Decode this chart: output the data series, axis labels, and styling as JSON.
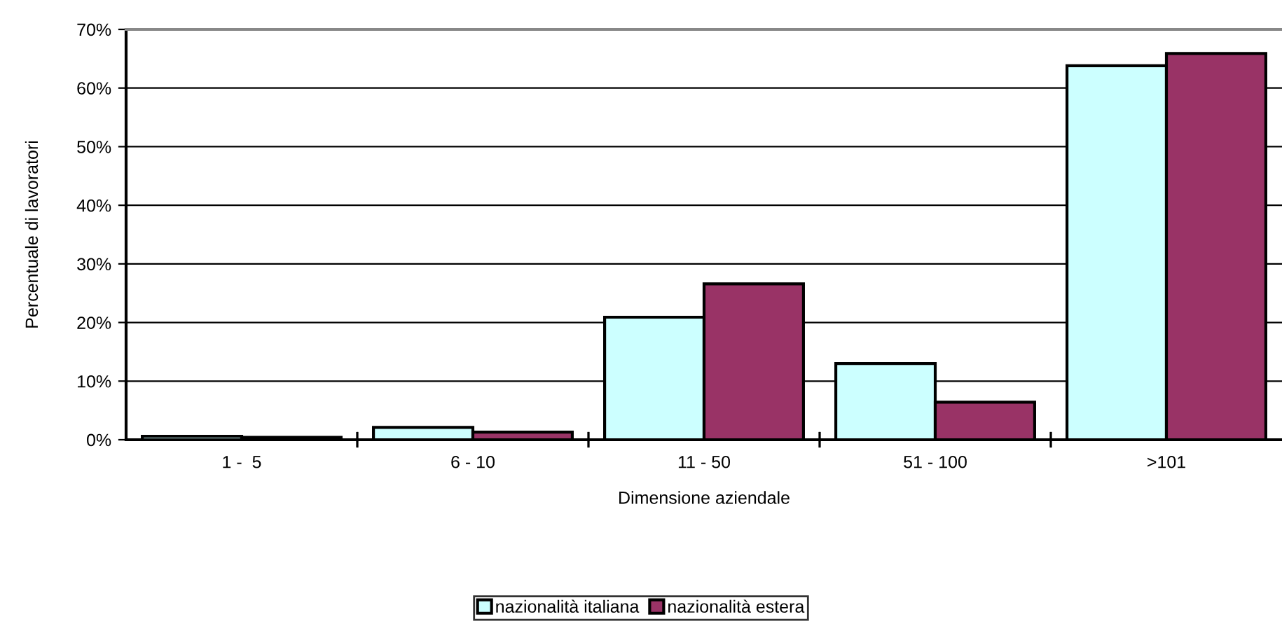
{
  "chart_data": {
    "type": "bar",
    "xlabel": "Dimensione aziendale",
    "ylabel": "Percentuale di lavoratori",
    "categories": [
      "1 -  5",
      "6 - 10",
      "11 - 50",
      "51 - 100",
      ">101"
    ],
    "series": [
      {
        "name": "nazionalità italiana",
        "color": "#ccffff",
        "values": [
          0.6,
          2.1,
          20.9,
          13.0,
          63.8
        ]
      },
      {
        "name": "nazionalità estera",
        "color": "#993366",
        "values": [
          0.4,
          1.3,
          26.6,
          6.4,
          65.9
        ]
      }
    ],
    "ylim": [
      0,
      70
    ],
    "yticks": [
      {
        "value": 0,
        "label": "0%"
      },
      {
        "value": 10,
        "label": "10%"
      },
      {
        "value": 20,
        "label": "20%"
      },
      {
        "value": 30,
        "label": "30%"
      },
      {
        "value": 40,
        "label": "40%"
      },
      {
        "value": 50,
        "label": "50%"
      },
      {
        "value": 60,
        "label": "60%"
      },
      {
        "value": 70,
        "label": "70%"
      }
    ],
    "grid": "y",
    "legend": "bottom"
  }
}
